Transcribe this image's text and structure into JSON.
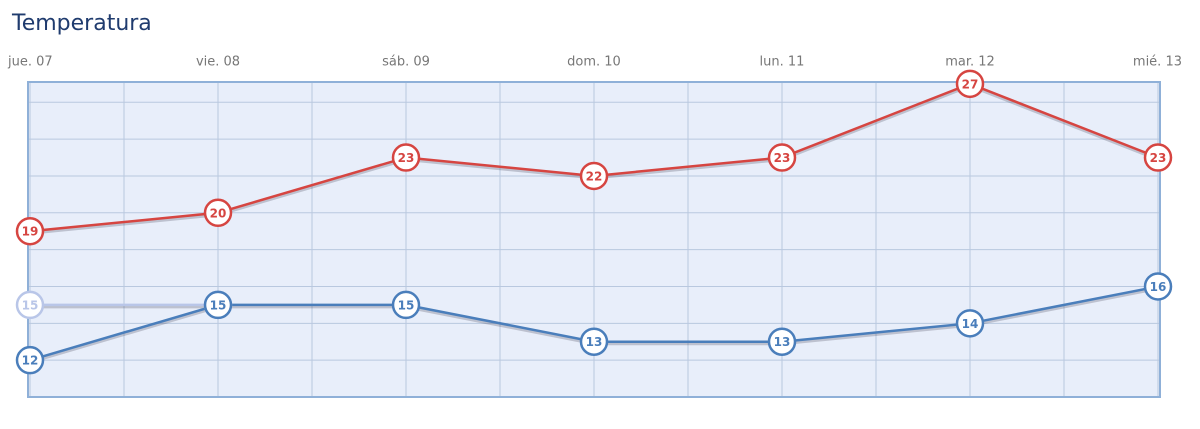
{
  "chart_data": {
    "type": "line",
    "title": "Temperatura",
    "categories": [
      "jue. 07",
      "vie. 08",
      "sáb. 09",
      "dom. 10",
      "lun. 11",
      "mar. 12",
      "mié. 13"
    ],
    "series": [
      {
        "color": "#d64541",
        "values": [
          19,
          20,
          23,
          22,
          23,
          27,
          23
        ]
      },
      {
        "color": "#b9c6e8",
        "values": [
          15,
          15,
          null,
          null,
          null,
          null,
          null
        ]
      },
      {
        "color": "#4a7ebb",
        "values": [
          12,
          15,
          15,
          13,
          13,
          14,
          16
        ]
      }
    ],
    "ylim": [
      10,
      27.1
    ],
    "yticks": [
      12,
      14,
      16,
      18,
      20,
      22,
      24,
      26
    ],
    "grid": true
  }
}
